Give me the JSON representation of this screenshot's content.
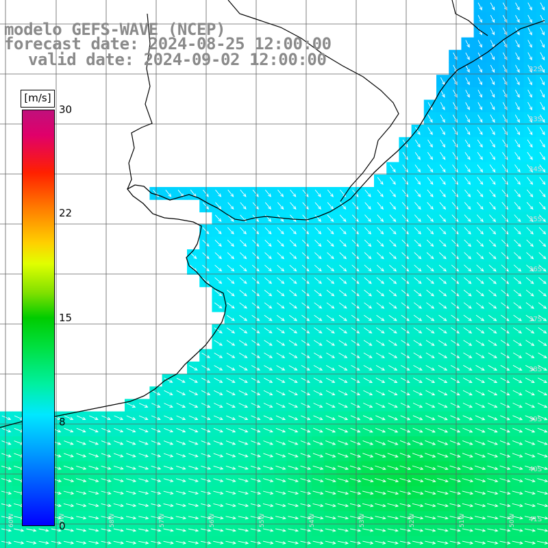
{
  "title": {
    "line1": "modelo GEFS-WAVE (NCEP)",
    "line2": "forecast date: 2024-08-25 12:00:00",
    "line3": "valid date: 2024-09-02 12:00:00"
  },
  "colorbar": {
    "unit": "[m/s]",
    "ticks": [
      "30",
      "22",
      "15",
      "8",
      "0"
    ],
    "range": [
      0,
      30
    ]
  },
  "map": {
    "variable": "wind speed and direction",
    "lat_labels": [
      "32S",
      "33S",
      "34S",
      "35S",
      "36S",
      "37S",
      "38S",
      "39S",
      "40S",
      "41S"
    ],
    "lon_labels": [
      "60W",
      "59W",
      "58W",
      "57W",
      "56W",
      "55W",
      "54W",
      "53W",
      "52W",
      "51W",
      "50W"
    ],
    "colors": {
      "land": "#ffffff",
      "coast": "#000000",
      "grid": "#606060",
      "arrow": "#ffffff",
      "title": "#8a8a8a"
    }
  }
}
